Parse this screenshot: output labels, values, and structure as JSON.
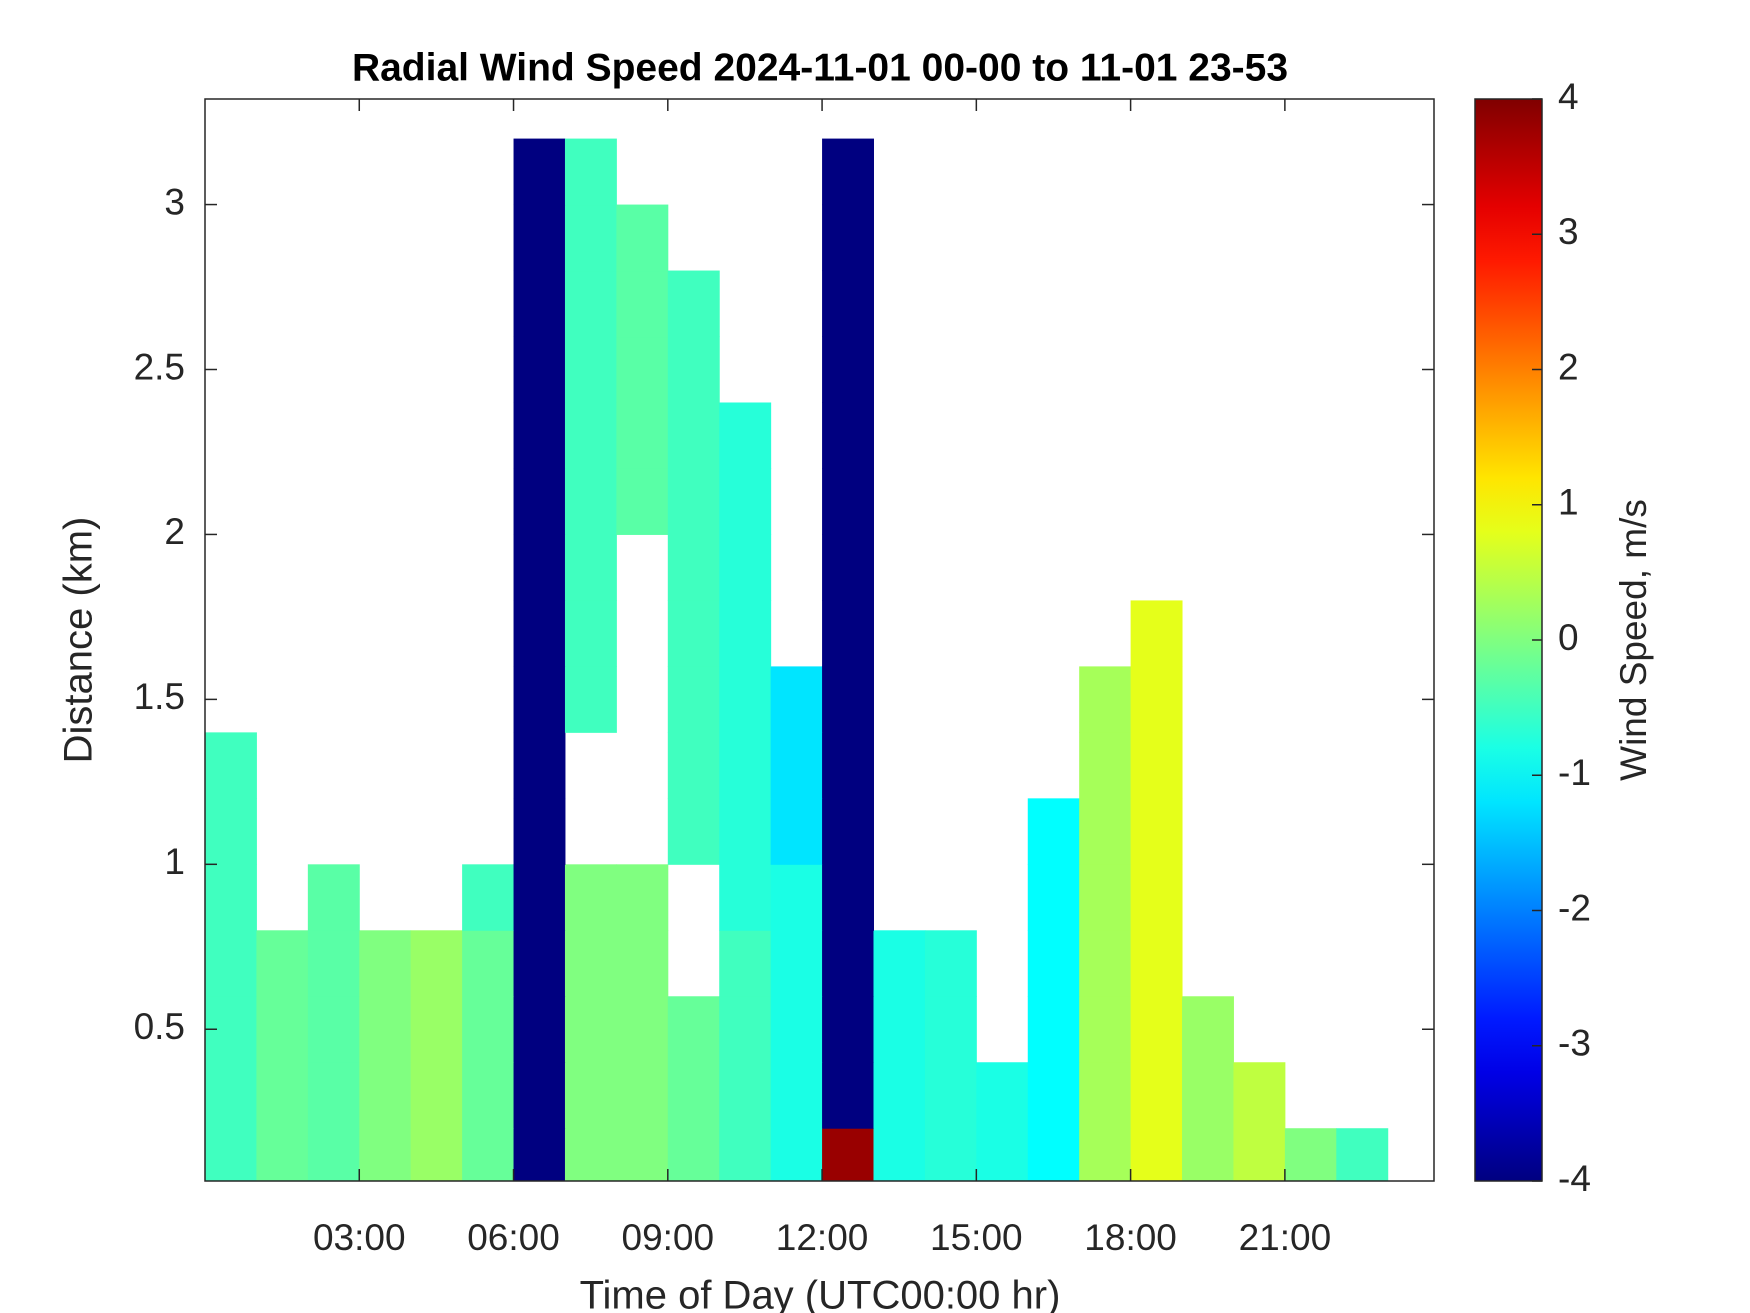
{
  "chart_data": {
    "type": "heatmap",
    "title": "Radial Wind Speed 2024-11-01 00-00 to 11-01 23-53",
    "x_label": "Time of Day (UTC00:00 hr)",
    "y_label": "Distance (km)",
    "colorbar_label": "Wind Speed, m/s",
    "colormap": "jet",
    "clim": [
      -4,
      4
    ],
    "cticks": [
      -4,
      -3,
      -2,
      -1,
      0,
      1,
      2,
      3,
      4
    ],
    "xlim": [
      0,
      23.9
    ],
    "ylim": [
      0.04,
      3.32
    ],
    "xticks": [
      {
        "value": 3,
        "label": "03:00"
      },
      {
        "value": 6,
        "label": "06:00"
      },
      {
        "value": 9,
        "label": "09:00"
      },
      {
        "value": 12,
        "label": "12:00"
      },
      {
        "value": 15,
        "label": "15:00"
      },
      {
        "value": 18,
        "label": "18:00"
      },
      {
        "value": 21,
        "label": "21:00"
      }
    ],
    "yticks": [
      0.5,
      1,
      1.5,
      2,
      2.5,
      3
    ],
    "x": [
      0.5,
      1.5,
      2.5,
      3.5,
      4.5,
      5.5,
      6.5,
      7.5,
      8.5,
      9.5,
      10.5,
      11.5,
      12.5,
      13.5,
      14.5,
      15.5,
      16.5,
      17.5,
      18.5,
      19.5,
      20.5,
      21.5,
      22.5,
      23.5
    ],
    "y": [
      0.1,
      0.3,
      0.5,
      0.7,
      0.9,
      1.1,
      1.3,
      1.5,
      1.7,
      1.9,
      2.1,
      2.3,
      2.5,
      2.7,
      2.9,
      3.1
    ],
    "z": [
      [
        -0.5,
        -0.2,
        -0.3,
        0,
        0.2,
        -0.2,
        -4,
        0,
        0,
        -0.2,
        -0.5,
        -0.8,
        3.8,
        -0.8,
        -0.7,
        -0.8,
        -1,
        0.3,
        0.8,
        0.2,
        0.5,
        0,
        -0.5,
        null
      ],
      [
        -0.5,
        -0.2,
        -0.3,
        0,
        0.2,
        -0.2,
        -4,
        0,
        0,
        -0.2,
        -0.5,
        -0.8,
        -4,
        -0.8,
        -0.7,
        -0.8,
        -1,
        0.3,
        0.8,
        0.2,
        0.5,
        null,
        null,
        null
      ],
      [
        -0.5,
        -0.2,
        -0.3,
        0,
        0.2,
        -0.2,
        -4,
        0,
        0,
        -0.2,
        -0.5,
        -0.8,
        -4,
        -0.8,
        -0.7,
        null,
        -1,
        0.3,
        0.8,
        0.2,
        null,
        null,
        null,
        null
      ],
      [
        -0.5,
        -0.2,
        -0.3,
        0,
        0.2,
        -0.2,
        -4,
        0,
        0,
        null,
        -0.5,
        -0.8,
        -4,
        -0.8,
        -0.7,
        null,
        -1,
        0.3,
        0.8,
        null,
        null,
        null,
        null,
        null
      ],
      [
        -0.5,
        null,
        -0.3,
        null,
        null,
        -0.5,
        -4,
        0,
        0,
        null,
        -0.7,
        -0.8,
        -4,
        null,
        null,
        null,
        -1,
        0.3,
        0.8,
        null,
        null,
        null,
        null,
        null
      ],
      [
        -0.5,
        null,
        null,
        null,
        null,
        null,
        -4,
        null,
        null,
        -0.5,
        -0.7,
        -1.2,
        -4,
        null,
        null,
        null,
        -1,
        0.3,
        0.8,
        null,
        null,
        null,
        null,
        null
      ],
      [
        -0.5,
        null,
        null,
        null,
        null,
        null,
        -4,
        null,
        null,
        -0.5,
        -0.7,
        -1.2,
        -4,
        null,
        null,
        null,
        null,
        0.3,
        0.8,
        null,
        null,
        null,
        null,
        null
      ],
      [
        null,
        null,
        null,
        null,
        null,
        null,
        -4,
        -0.5,
        null,
        -0.5,
        -0.7,
        -1.2,
        -4,
        null,
        null,
        null,
        null,
        0.3,
        0.8,
        null,
        null,
        null,
        null,
        null
      ],
      [
        null,
        null,
        null,
        null,
        null,
        null,
        -4,
        -0.5,
        null,
        -0.5,
        -0.7,
        null,
        -4,
        null,
        null,
        null,
        null,
        null,
        0.8,
        null,
        null,
        null,
        null,
        null
      ],
      [
        null,
        null,
        null,
        null,
        null,
        null,
        -4,
        -0.5,
        null,
        -0.5,
        -0.7,
        null,
        -4,
        null,
        null,
        null,
        null,
        null,
        null,
        null,
        null,
        null,
        null,
        null
      ],
      [
        null,
        null,
        null,
        null,
        null,
        null,
        -4,
        -0.5,
        -0.3,
        -0.5,
        -0.7,
        null,
        -4,
        null,
        null,
        null,
        null,
        null,
        null,
        null,
        null,
        null,
        null,
        null
      ],
      [
        null,
        null,
        null,
        null,
        null,
        null,
        -4,
        -0.5,
        -0.3,
        -0.5,
        -0.7,
        null,
        -4,
        null,
        null,
        null,
        null,
        null,
        null,
        null,
        null,
        null,
        null,
        null
      ],
      [
        null,
        null,
        null,
        null,
        null,
        null,
        -4,
        -0.5,
        -0.3,
        -0.5,
        null,
        null,
        -4,
        null,
        null,
        null,
        null,
        null,
        null,
        null,
        null,
        null,
        null,
        null
      ],
      [
        null,
        null,
        null,
        null,
        null,
        null,
        -4,
        -0.5,
        -0.3,
        -0.5,
        null,
        null,
        -4,
        null,
        null,
        null,
        null,
        null,
        null,
        null,
        null,
        null,
        null,
        null
      ],
      [
        null,
        null,
        null,
        null,
        null,
        null,
        -4,
        -0.5,
        -0.3,
        null,
        null,
        null,
        -4,
        null,
        null,
        null,
        null,
        null,
        null,
        null,
        null,
        null,
        null,
        null
      ],
      [
        null,
        null,
        null,
        null,
        null,
        null,
        -4,
        -0.5,
        null,
        null,
        null,
        null,
        -4,
        null,
        null,
        null,
        null,
        null,
        null,
        null,
        null,
        null,
        null,
        null
      ]
    ]
  }
}
